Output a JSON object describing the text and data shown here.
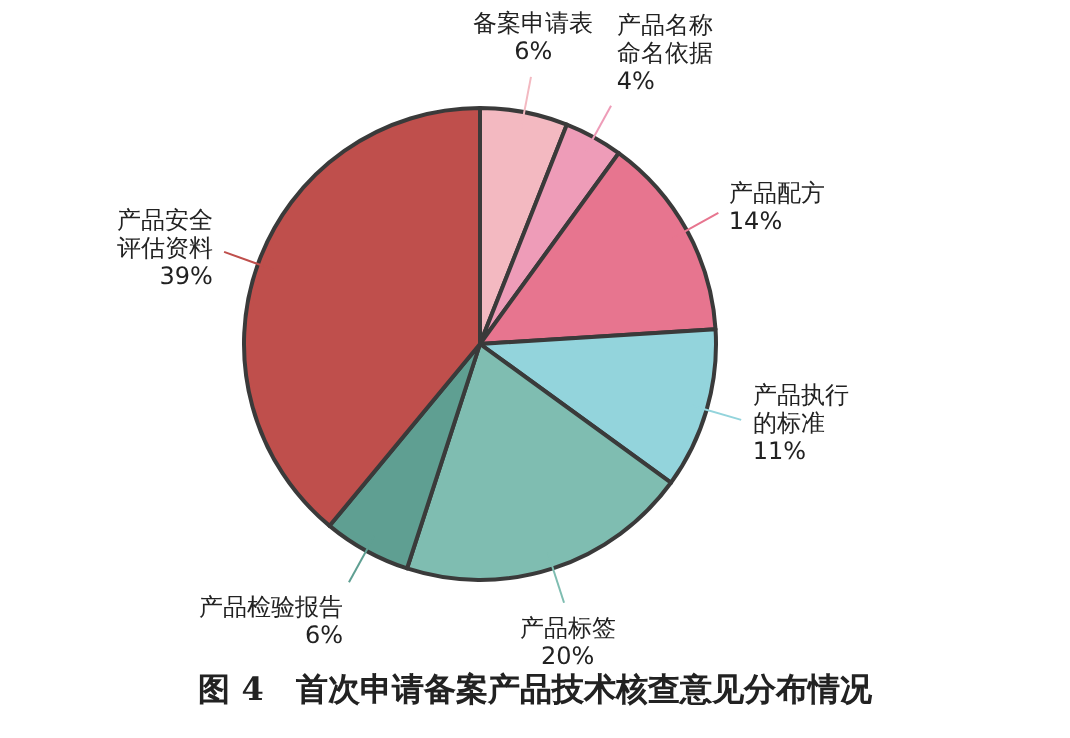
{
  "chart_data": {
    "type": "pie",
    "title": "图 4　首次申请备案产品技术核查意见分布情况",
    "categories": [
      "备案申请表",
      "产品名称命名依据",
      "产品配方",
      "产品执行的标准",
      "产品标签",
      "产品检验报告",
      "产品安全评估资料"
    ],
    "values": [
      6,
      4,
      14,
      11,
      20,
      6,
      39
    ],
    "value_labels": [
      "6%",
      "4%",
      "14%",
      "11%",
      "20%",
      "6%",
      "39%"
    ],
    "colors": [
      "#f3b9c1",
      "#ee9cb8",
      "#e7758f",
      "#93d4dc",
      "#7fbdb1",
      "#5f9f92",
      "#bf4f4c"
    ]
  }
}
